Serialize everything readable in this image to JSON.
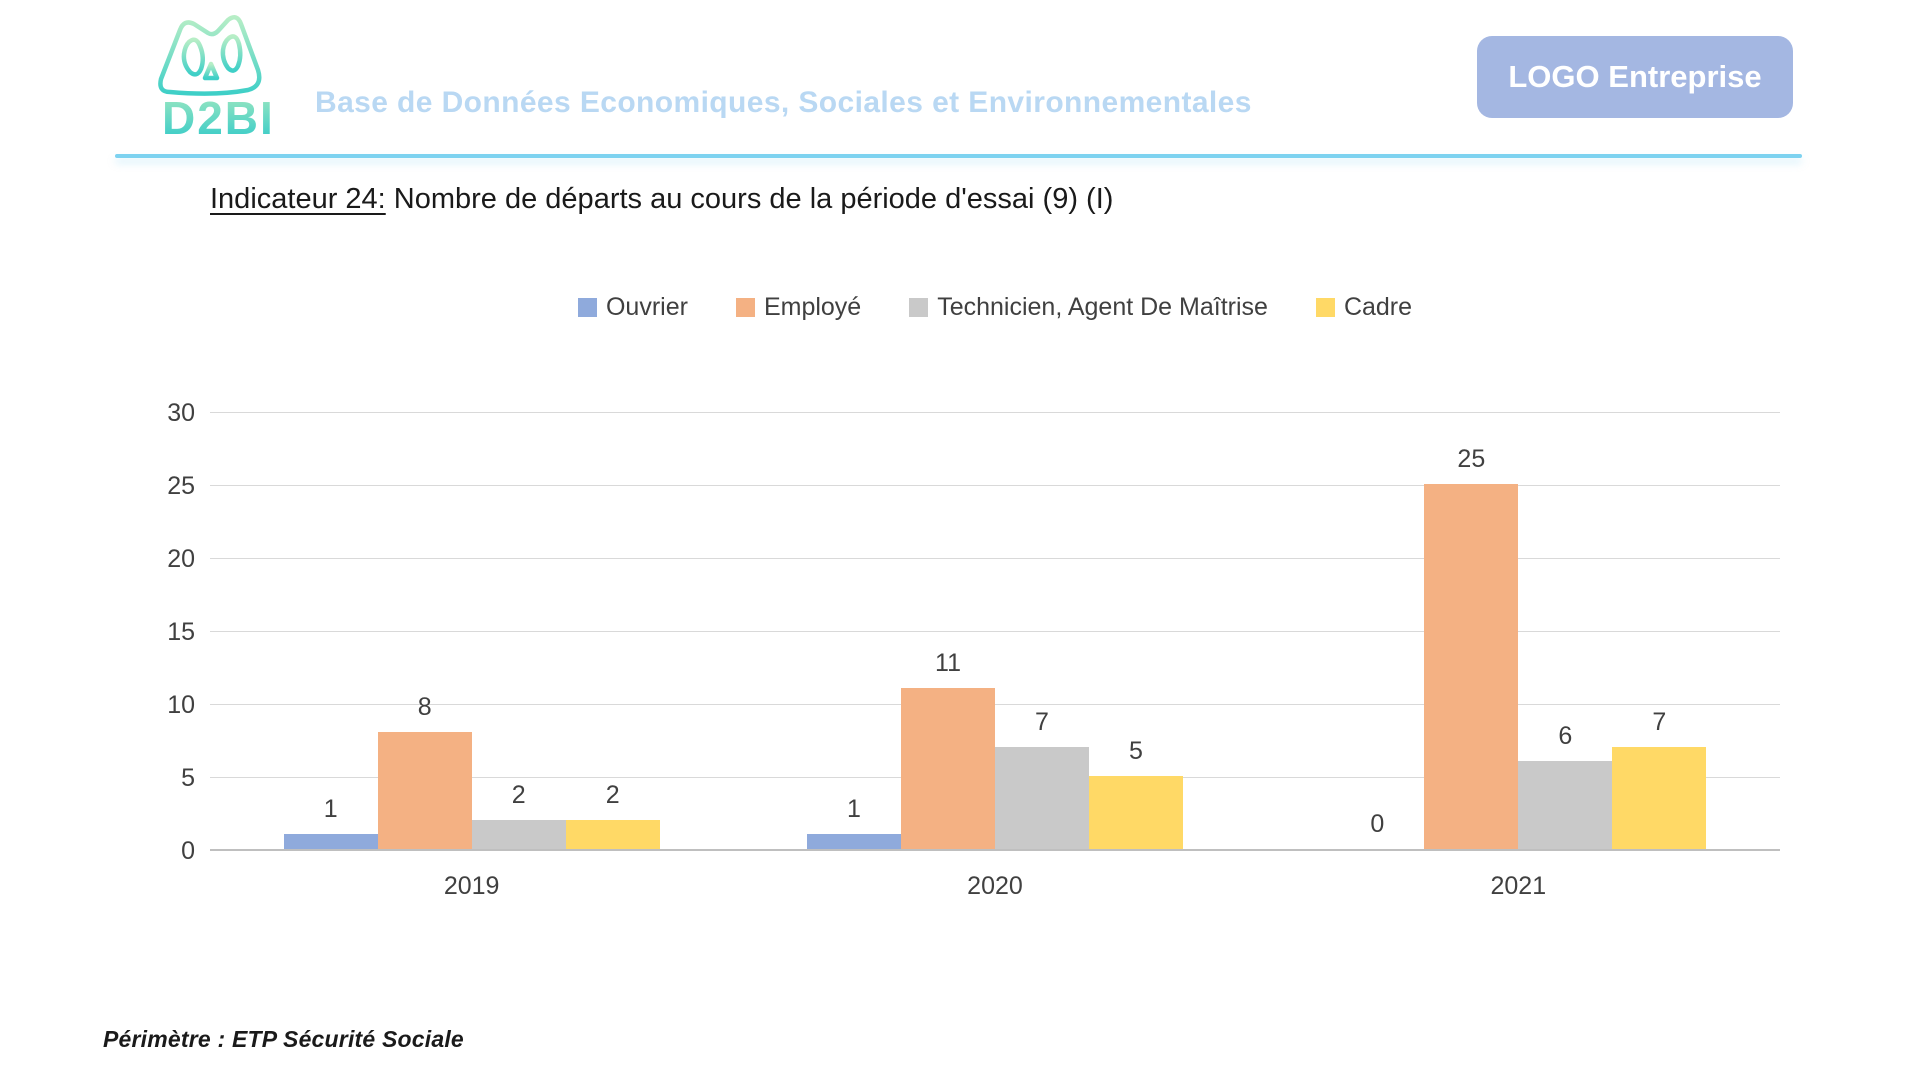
{
  "header": {
    "logo_text": "D2BI",
    "title": "Base de Données Economiques, Sociales et Environnementales",
    "company_button_label": "LOGO Entreprise"
  },
  "indicator": {
    "label": "Indicateur 24:",
    "title": " Nombre de départs au cours de la période d'essai (9) (I)"
  },
  "chart_data": {
    "type": "bar",
    "title": "Nombre de départs au cours de la période d'essai",
    "categories": [
      "2019",
      "2020",
      "2021"
    ],
    "series": [
      {
        "name": "Ouvrier",
        "color": "#8FAADC",
        "values": [
          1,
          1,
          0
        ]
      },
      {
        "name": "Employé",
        "color": "#F4B183",
        "values": [
          8,
          11,
          25
        ]
      },
      {
        "name": "Technicien, Agent De Maîtrise",
        "color": "#C9C9C9",
        "values": [
          2,
          7,
          6
        ]
      },
      {
        "name": "Cadre",
        "color": "#FFD966",
        "values": [
          2,
          5,
          7
        ]
      }
    ],
    "ylim": [
      0,
      30
    ],
    "yticks": [
      0,
      5,
      10,
      15,
      20,
      25,
      30
    ],
    "grid": true,
    "legend_position": "top",
    "data_labels": true,
    "xlabel": "",
    "ylabel": ""
  },
  "footer": {
    "perimeter": "Périmètre : ETP Sécurité Sociale"
  },
  "colors": {
    "divider": "#7dd2f0",
    "header_title": "#b9d8f3",
    "company_button_bg": "#a4b7e2",
    "gridline": "#d9d9d9",
    "axis_line": "#bfbfbf",
    "tick_text": "#404040",
    "logo_gradient_top": "#b7eec6",
    "logo_gradient_bottom": "#3ecfc7"
  }
}
